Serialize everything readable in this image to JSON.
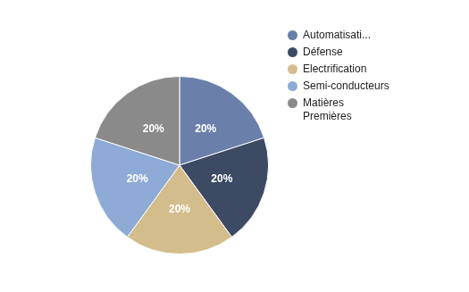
{
  "chart_data": {
    "type": "pie",
    "categories": [
      "Automatisati...",
      "Défense",
      "Electrification",
      "Semi-conducteurs",
      "Matières Premières"
    ],
    "values": [
      20,
      20,
      20,
      20,
      20
    ],
    "value_labels": [
      "20%",
      "20%",
      "20%",
      "20%",
      "20%"
    ],
    "colors": [
      "#6a80ab",
      "#3d4a63",
      "#d4bd8c",
      "#8eaad6",
      "#8a8a8a"
    ],
    "data_labels": true,
    "legend": "right"
  }
}
